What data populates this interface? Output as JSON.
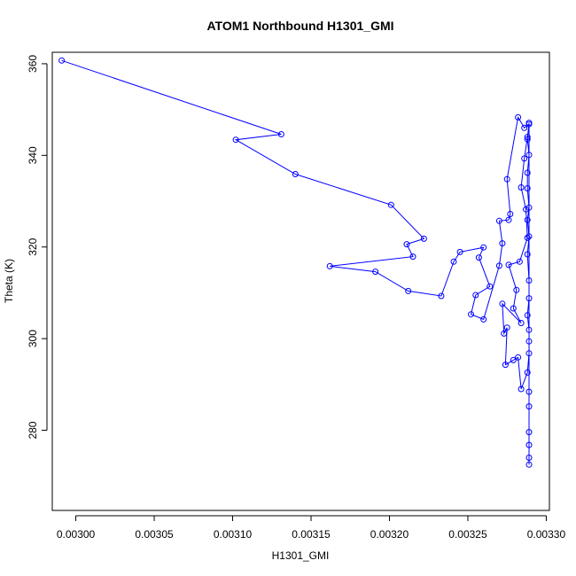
{
  "chart_data": {
    "type": "line",
    "title": "ATOM1 Northbound H1301_GMI",
    "xlabel": "H1301_GMI",
    "ylabel": "Theta (K)",
    "xlim": [
      0.002985,
      0.003302
    ],
    "ylim": [
      262.5,
      362.5
    ],
    "x_ticks": [
      0.003,
      0.00305,
      0.0031,
      0.00315,
      0.0032,
      0.00325,
      0.0033
    ],
    "x_tick_labels": [
      "0.00300",
      "0.00305",
      "0.00310",
      "0.00315",
      "0.00320",
      "0.00325",
      "0.00330"
    ],
    "y_ticks": [
      280,
      300,
      320,
      340,
      360
    ],
    "y_tick_labels": [
      "280",
      "300",
      "320",
      "340",
      "360"
    ],
    "grid": false,
    "legend": "none",
    "series": [
      {
        "color": "#0000ff",
        "marker": "open-circle",
        "line": "solid",
        "points": [
          [
            0.002991,
            360.7
          ],
          [
            0.003131,
            344.6
          ],
          [
            0.003102,
            343.4
          ],
          [
            0.00314,
            335.9
          ],
          [
            0.003201,
            329.2
          ],
          [
            0.003222,
            321.8
          ],
          [
            0.003211,
            320.6
          ],
          [
            0.003215,
            317.9
          ],
          [
            0.003162,
            315.8
          ],
          [
            0.003191,
            314.6
          ],
          [
            0.003212,
            310.4
          ],
          [
            0.003233,
            309.3
          ],
          [
            0.003241,
            316.8
          ],
          [
            0.003245,
            318.9
          ],
          [
            0.00326,
            319.9
          ],
          [
            0.003257,
            317.7
          ],
          [
            0.003264,
            311.4
          ],
          [
            0.003255,
            309.5
          ],
          [
            0.003252,
            305.3
          ],
          [
            0.00326,
            304.2
          ],
          [
            0.00327,
            315.9
          ],
          [
            0.003272,
            320.8
          ],
          [
            0.00327,
            325.7
          ],
          [
            0.003276,
            325.9
          ],
          [
            0.003277,
            327.2
          ],
          [
            0.003275,
            334.8
          ],
          [
            0.003282,
            348.3
          ],
          [
            0.003286,
            346.0
          ],
          [
            0.003289,
            346.8
          ],
          [
            0.003288,
            344.0
          ],
          [
            0.003286,
            339.3
          ],
          [
            0.003284,
            333.0
          ],
          [
            0.003287,
            328.2
          ],
          [
            0.003288,
            322.0
          ],
          [
            0.003283,
            316.8
          ],
          [
            0.003276,
            316.1
          ],
          [
            0.003281,
            310.6
          ],
          [
            0.003279,
            306.6
          ],
          [
            0.003284,
            303.4
          ],
          [
            0.003272,
            307.6
          ],
          [
            0.003273,
            301.1
          ],
          [
            0.003275,
            302.4
          ],
          [
            0.003274,
            294.3
          ],
          [
            0.003279,
            295.3
          ],
          [
            0.003282,
            295.9
          ],
          [
            0.003284,
            289.0
          ],
          [
            0.003288,
            292.6
          ],
          [
            0.003289,
            296.8
          ],
          [
            0.003289,
            299.4
          ],
          [
            0.003289,
            301.9
          ],
          [
            0.003288,
            305.1
          ],
          [
            0.003289,
            308.8
          ],
          [
            0.003289,
            312.7
          ],
          [
            0.003288,
            318.4
          ],
          [
            0.003289,
            322.3
          ],
          [
            0.003288,
            325.9
          ],
          [
            0.003289,
            328.6
          ],
          [
            0.003288,
            332.8
          ],
          [
            0.003288,
            336.2
          ],
          [
            0.003289,
            340.1
          ],
          [
            0.003288,
            343.5
          ],
          [
            0.003289,
            347.1
          ],
          [
            0.003289,
            288.4
          ],
          [
            0.003289,
            285.2
          ],
          [
            0.003289,
            279.6
          ],
          [
            0.003289,
            276.8
          ],
          [
            0.003289,
            274.0
          ],
          [
            0.003289,
            272.5
          ]
        ]
      }
    ]
  }
}
